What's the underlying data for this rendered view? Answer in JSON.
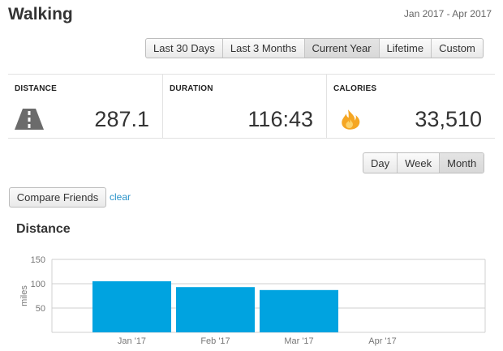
{
  "header": {
    "title": "Walking",
    "date_range": "Jan 2017 - Apr 2017"
  },
  "range_tabs": [
    {
      "label": "Last 30 Days",
      "active": false
    },
    {
      "label": "Last 3 Months",
      "active": false
    },
    {
      "label": "Current Year",
      "active": true
    },
    {
      "label": "Lifetime",
      "active": false
    },
    {
      "label": "Custom",
      "active": false
    }
  ],
  "stats": [
    {
      "label": "DISTANCE",
      "value": "287.1",
      "icon": "road-icon"
    },
    {
      "label": "DURATION",
      "value": "116:43"
    },
    {
      "label": "CALORIES",
      "value": "33,510",
      "icon": "flame-icon"
    }
  ],
  "period_tabs": [
    {
      "label": "Day",
      "active": false
    },
    {
      "label": "Week",
      "active": false
    },
    {
      "label": "Month",
      "active": true
    }
  ],
  "compare": {
    "button_label": "Compare Friends",
    "clear_label": "clear"
  },
  "colors": {
    "bar": "#00a3e0",
    "link": "#2a93c9",
    "flame": "#f5a623",
    "icon_gray": "#6b6b6b"
  },
  "chart_data": {
    "type": "bar",
    "title": "Distance",
    "xlabel": "",
    "ylabel": "miles",
    "categories": [
      "Jan '17",
      "Feb '17",
      "Mar '17",
      "Apr '17"
    ],
    "values": [
      105,
      93,
      87,
      null
    ],
    "ylim": [
      0,
      150
    ],
    "yticks": [
      50,
      100,
      150
    ],
    "grid": true,
    "legend": "none"
  }
}
